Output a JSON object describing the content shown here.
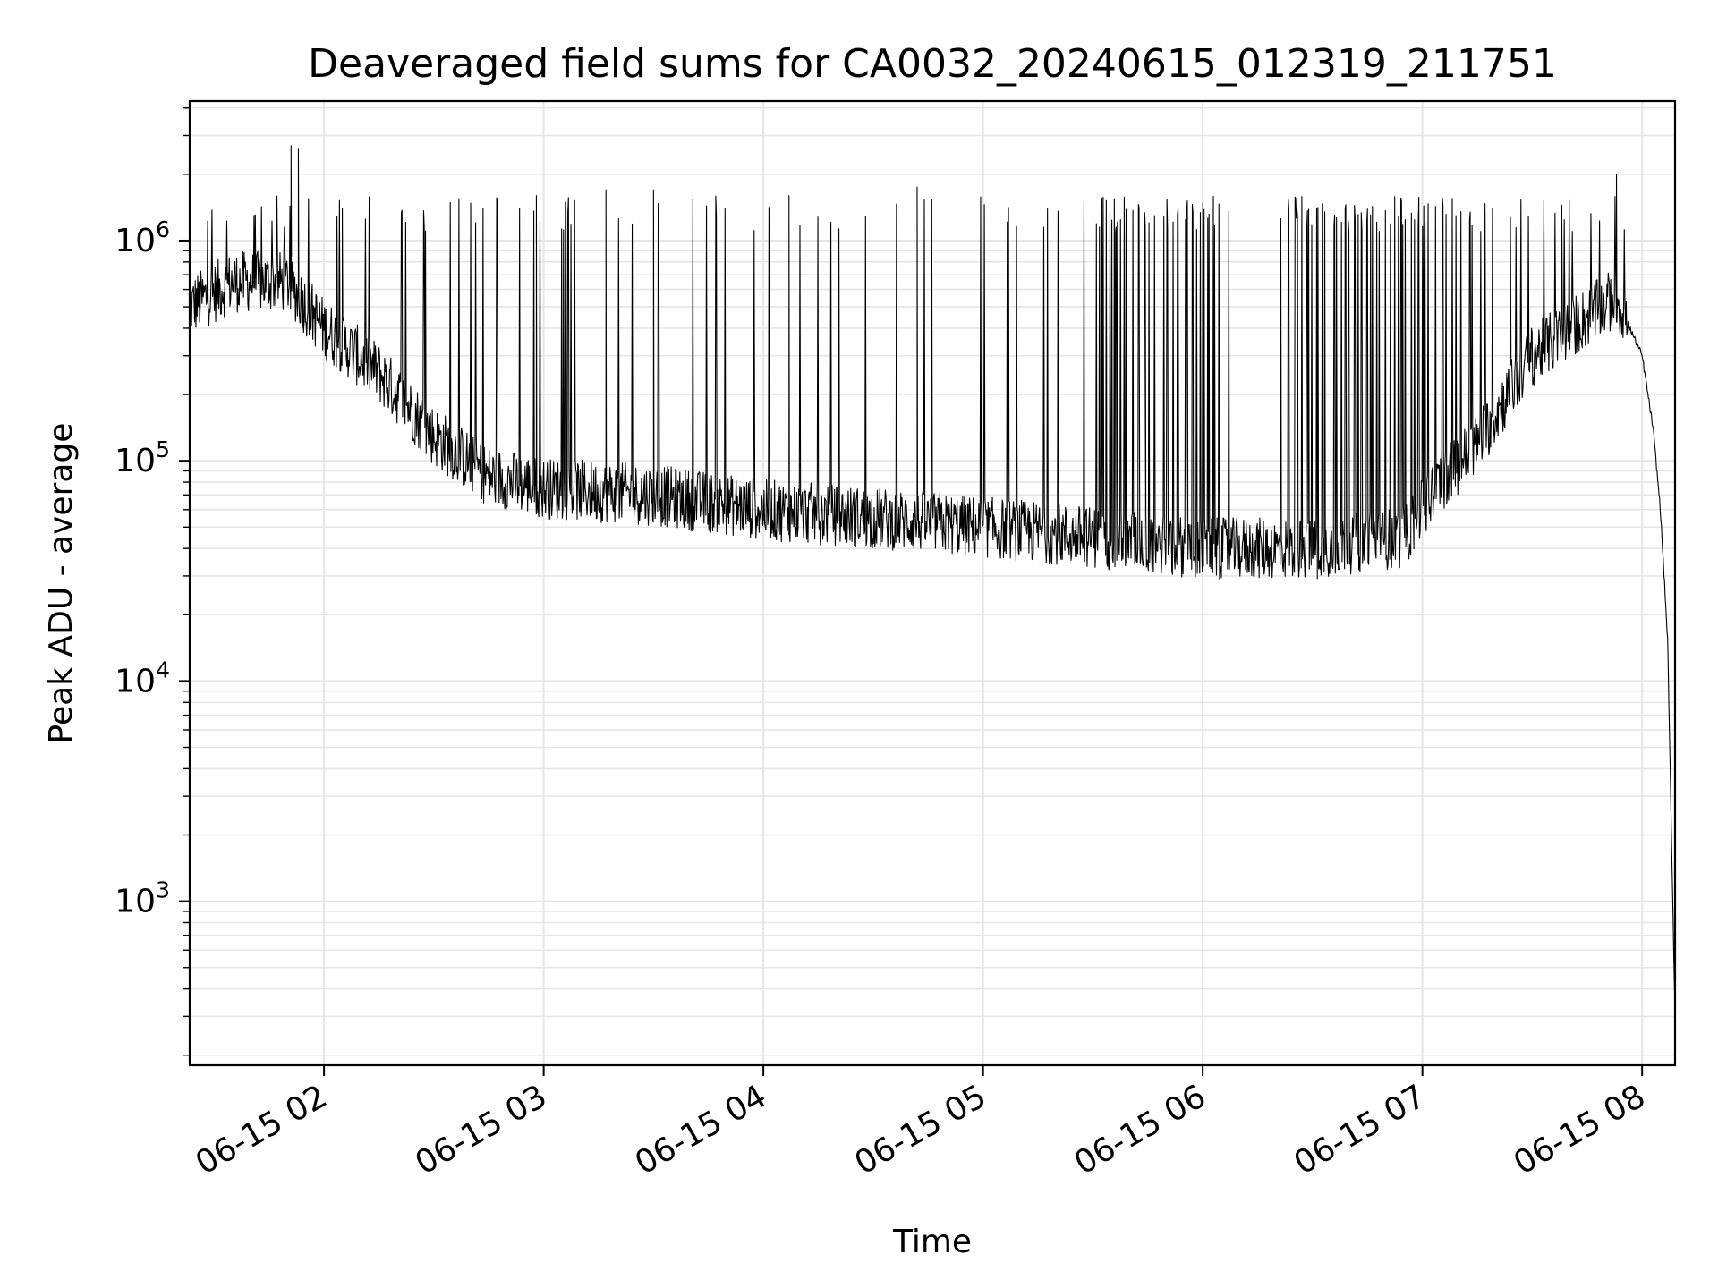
{
  "chart_data": {
    "type": "line",
    "title": "Deaveraged field sums for CA0032_20240615_012319_211751",
    "xlabel": "Time",
    "ylabel": "Peak ADU - average",
    "x_range": [
      "2024-06-15 01:23:19",
      "2024-06-15 08:09:00"
    ],
    "y_scale": "log",
    "ylim": [
      180,
      4300000
    ],
    "grid": true,
    "grid_minor": true,
    "line_color": "#000000",
    "grid_color": "#e6e6e6",
    "x_ticks": [
      {
        "time": "2024-06-15 02:00",
        "label": "06-15 02"
      },
      {
        "time": "2024-06-15 03:00",
        "label": "06-15 03"
      },
      {
        "time": "2024-06-15 04:00",
        "label": "06-15 04"
      },
      {
        "time": "2024-06-15 05:00",
        "label": "06-15 05"
      },
      {
        "time": "2024-06-15 06:00",
        "label": "06-15 06"
      },
      {
        "time": "2024-06-15 07:00",
        "label": "06-15 07"
      },
      {
        "time": "2024-06-15 08:00",
        "label": "06-15 08"
      }
    ],
    "y_ticks": [
      {
        "value": 1000,
        "base": "10",
        "exp": "3"
      },
      {
        "value": 10000,
        "base": "10",
        "exp": "4"
      },
      {
        "value": 100000,
        "base": "10",
        "exp": "5"
      },
      {
        "value": 1000000,
        "base": "10",
        "exp": "6"
      }
    ],
    "series": [
      {
        "baseline": [
          {
            "t": "2024-06-15 01:23:19",
            "v": 500000
          },
          {
            "t": "2024-06-15 01:35",
            "v": 650000
          },
          {
            "t": "2024-06-15 01:50",
            "v": 650000
          },
          {
            "t": "2024-06-15 02:00",
            "v": 400000
          },
          {
            "t": "2024-06-15 02:15",
            "v": 250000
          },
          {
            "t": "2024-06-15 02:30",
            "v": 130000
          },
          {
            "t": "2024-06-15 02:45",
            "v": 85000
          },
          {
            "t": "2024-06-15 03:00",
            "v": 75000
          },
          {
            "t": "2024-06-15 03:30",
            "v": 70000
          },
          {
            "t": "2024-06-15 04:00",
            "v": 60000
          },
          {
            "t": "2024-06-15 04:30",
            "v": 55000
          },
          {
            "t": "2024-06-15 05:00",
            "v": 50000
          },
          {
            "t": "2024-06-15 05:30",
            "v": 45000
          },
          {
            "t": "2024-06-15 06:00",
            "v": 40000
          },
          {
            "t": "2024-06-15 06:30",
            "v": 40000
          },
          {
            "t": "2024-06-15 06:55",
            "v": 45000
          },
          {
            "t": "2024-06-15 07:05",
            "v": 80000
          },
          {
            "t": "2024-06-15 07:15",
            "v": 120000
          },
          {
            "t": "2024-06-15 07:30",
            "v": 300000
          },
          {
            "t": "2024-06-15 07:45",
            "v": 450000
          },
          {
            "t": "2024-06-15 07:53",
            "v": 550000
          },
          {
            "t": "2024-06-15 08:00",
            "v": 300000
          },
          {
            "t": "2024-06-15 08:03",
            "v": 140000
          },
          {
            "t": "2024-06-15 08:05",
            "v": 60000
          },
          {
            "t": "2024-06-15 08:07",
            "v": 15000
          },
          {
            "t": "2024-06-15 08:08",
            "v": 2000
          },
          {
            "t": "2024-06-15 08:09",
            "v": 300
          }
        ],
        "spikes": [
          {
            "t": "2024-06-15 01:51",
            "v": 2700000
          },
          {
            "t": "2024-06-15 01:53",
            "v": 2600000
          },
          {
            "t": "2024-06-15 02:05",
            "v": 1400000
          },
          {
            "t": "2024-06-15 02:58",
            "v": 1600000
          },
          {
            "t": "2024-06-15 03:17",
            "v": 1700000
          },
          {
            "t": "2024-06-15 03:30",
            "v": 1700000
          },
          {
            "t": "2024-06-15 04:07",
            "v": 1600000
          },
          {
            "t": "2024-06-15 04:42",
            "v": 1750000
          },
          {
            "t": "2024-06-15 07:53",
            "v": 2000000
          }
        ]
      }
    ]
  }
}
